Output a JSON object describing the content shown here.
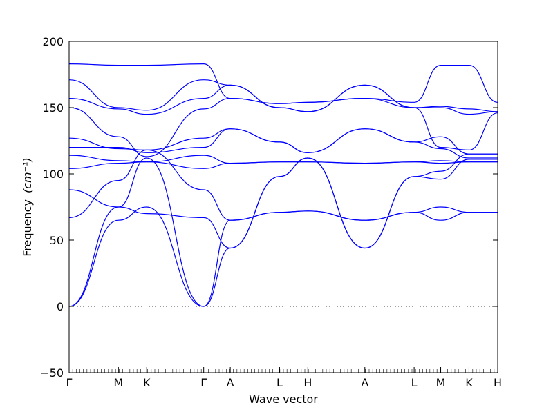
{
  "chart_data": {
    "type": "line",
    "xlabel": "Wave vector",
    "ylabel": "Frequency",
    "ylabel_unit": "(cm⁻¹)",
    "ylim": [
      -50,
      200
    ],
    "yticks": [
      -50,
      0,
      50,
      100,
      150,
      200
    ],
    "zero_line": true,
    "line_color": "#0000ff",
    "high_symmetry_points": [
      {
        "label": "Γ",
        "x": 0.0
      },
      {
        "label": "M",
        "x": 0.115
      },
      {
        "label": "K",
        "x": 0.181
      },
      {
        "label": "Γ",
        "x": 0.314
      },
      {
        "label": "A",
        "x": 0.376
      },
      {
        "label": "L",
        "x": 0.491
      },
      {
        "label": "H",
        "x": 0.557
      },
      {
        "label": "A",
        "x": 0.69
      },
      {
        "label": "L",
        "x": 0.805
      },
      {
        "label": "M",
        "x": 0.867
      },
      {
        "label": "K",
        "x": 0.933
      },
      {
        "label": "H",
        "x": 1.0
      }
    ],
    "series": [
      {
        "x": [
          0,
          0.115,
          0.181,
          0.314,
          0.376,
          0.491,
          0.557,
          0.69,
          0.805,
          0.867,
          0.933,
          1.0
        ],
        "y": [
          0,
          65,
          75,
          0,
          44,
          98,
          112,
          44,
          98,
          102,
          115,
          115
        ]
      },
      {
        "x": [
          0,
          0.115,
          0.181,
          0.314,
          0.376,
          0.491,
          0.557,
          0.69,
          0.805,
          0.867,
          0.933,
          1.0
        ],
        "y": [
          0,
          75,
          112,
          0,
          65,
          71,
          72,
          65,
          71,
          65,
          71,
          71
        ]
      },
      {
        "x": [
          0,
          0.115,
          0.181,
          0.314,
          0.376,
          0.491,
          0.557,
          0.69,
          0.805,
          0.867,
          0.933,
          1.0
        ],
        "y": [
          67,
          95,
          118,
          88,
          65,
          71,
          72,
          65,
          71,
          75,
          71,
          71
        ]
      },
      {
        "x": [
          0,
          0.115,
          0.181,
          0.314,
          0.376,
          0.491,
          0.557,
          0.69,
          0.805,
          0.867,
          0.933,
          1.0
        ],
        "y": [
          88,
          75,
          70,
          67,
          44,
          98,
          112,
          44,
          98,
          96,
          111,
          111
        ]
      },
      {
        "x": [
          0,
          0.115,
          0.181,
          0.314,
          0.376,
          0.491,
          0.557,
          0.69,
          0.805,
          0.867,
          0.933,
          1.0
        ],
        "y": [
          104,
          108,
          109,
          104,
          108,
          109,
          109,
          108,
          109,
          110,
          109,
          109
        ]
      },
      {
        "x": [
          0,
          0.115,
          0.181,
          0.314,
          0.376,
          0.491,
          0.557,
          0.69,
          0.805,
          0.867,
          0.933,
          1.0
        ],
        "y": [
          114,
          110,
          109,
          114,
          108,
          109,
          109,
          108,
          109,
          108,
          109,
          109
        ]
      },
      {
        "x": [
          0,
          0.115,
          0.181,
          0.314,
          0.376,
          0.491,
          0.557,
          0.69,
          0.805,
          0.867,
          0.933,
          1.0
        ],
        "y": [
          120,
          120,
          116,
          120,
          134,
          124,
          116,
          134,
          124,
          119,
          112,
          112
        ]
      },
      {
        "x": [
          0,
          0.115,
          0.181,
          0.314,
          0.376,
          0.491,
          0.557,
          0.69,
          0.805,
          0.867,
          0.933,
          1.0
        ],
        "y": [
          127,
          119,
          118,
          127,
          134,
          124,
          116,
          134,
          124,
          128,
          115,
          115
        ]
      },
      {
        "x": [
          0,
          0.115,
          0.181,
          0.314,
          0.376,
          0.491,
          0.557,
          0.69,
          0.805,
          0.867,
          0.933,
          1.0
        ],
        "y": [
          150,
          128,
          113,
          149,
          157,
          153,
          154,
          157,
          150,
          120,
          118,
          146
        ]
      },
      {
        "x": [
          0,
          0.115,
          0.181,
          0.314,
          0.376,
          0.491,
          0.557,
          0.69,
          0.805,
          0.867,
          0.933,
          1.0
        ],
        "y": [
          157,
          149,
          145,
          157,
          167,
          150,
          147,
          167,
          150,
          150,
          145,
          147
        ]
      },
      {
        "x": [
          0,
          0.115,
          0.181,
          0.314,
          0.376,
          0.491,
          0.557,
          0.69,
          0.805,
          0.867,
          0.933,
          1.0
        ],
        "y": [
          171,
          150,
          148,
          171,
          167,
          150,
          147,
          167,
          150,
          151,
          149,
          147
        ]
      },
      {
        "x": [
          0,
          0.115,
          0.181,
          0.314,
          0.376,
          0.491,
          0.557,
          0.69,
          0.805,
          0.867,
          0.933,
          1.0
        ],
        "y": [
          183,
          182,
          182,
          183,
          157,
          153,
          154,
          157,
          154,
          182,
          182,
          154
        ]
      }
    ]
  }
}
